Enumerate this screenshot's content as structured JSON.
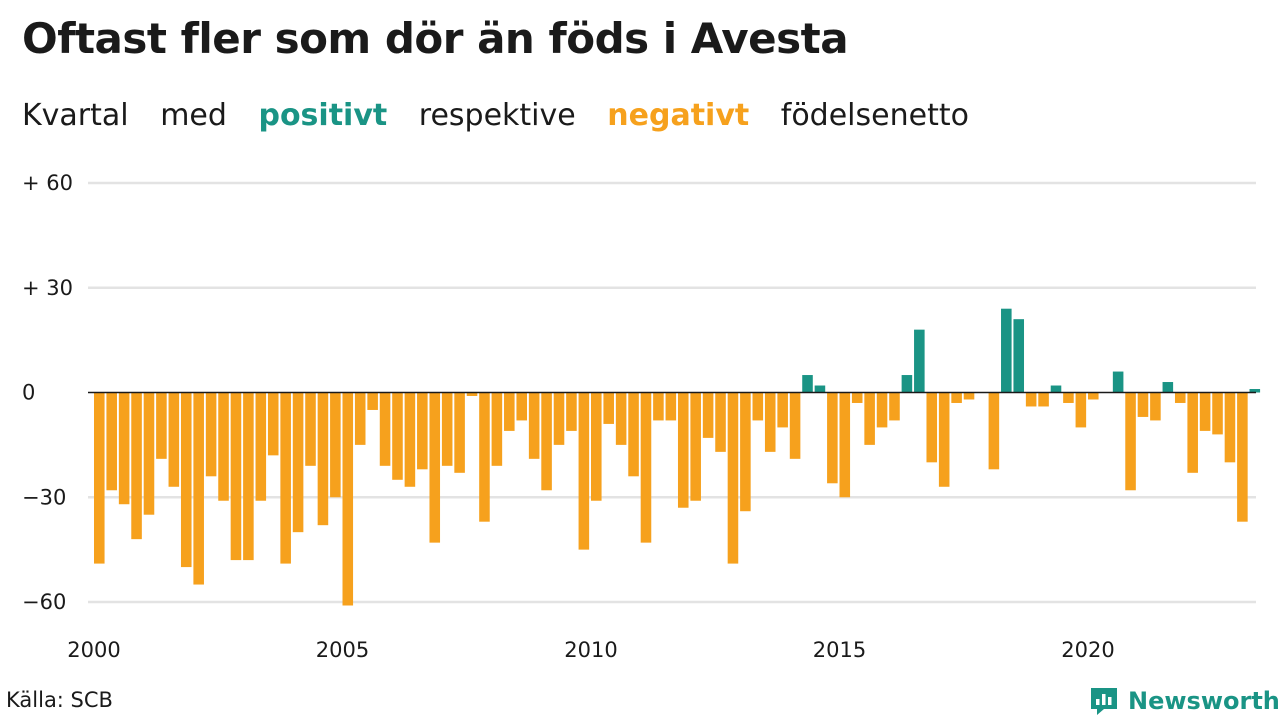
{
  "title": "Oftast fler som dör än föds i Avesta",
  "subtitle": {
    "part1": "Kvartal",
    "part2": "med",
    "positive_word": "positivt",
    "part3": "respektive",
    "negative_word": "negativt",
    "part4": "födelsenetto"
  },
  "source": "Källa: SCB",
  "brand": {
    "name": "Newsworthy",
    "icon": "newsworthy-logo-icon"
  },
  "colors": {
    "positive": "#1a9485",
    "negative": "#f6a11d",
    "grid": "#e3e3e3",
    "zero_line": "#1a1a1a"
  },
  "chart_data": {
    "type": "bar",
    "title": "Oftast fler som dör än föds i Avesta",
    "xlabel": "",
    "ylabel": "",
    "ylim": [
      -63,
      60
    ],
    "xlim": [
      2000,
      2023.75
    ],
    "y_ticks": [
      60,
      30,
      0,
      -30,
      -60
    ],
    "y_tick_labels": [
      "+ 60",
      "+ 30",
      "0",
      "−30",
      "−60"
    ],
    "x_ticks": [
      2000,
      2005,
      2010,
      2015,
      2020
    ],
    "x_tick_labels": [
      "2000",
      "2005",
      "2010",
      "2015",
      "2020"
    ],
    "grid": true,
    "legend": "none",
    "x_start": "2000 Q1",
    "period": "quarter",
    "values": [
      -49,
      -28,
      -32,
      -42,
      -35,
      -19,
      -27,
      -50,
      -55,
      -24,
      -31,
      -48,
      -48,
      -31,
      -18,
      -49,
      -40,
      -21,
      -38,
      -30,
      -61,
      -15,
      -5,
      -21,
      -25,
      -27,
      -22,
      -43,
      -21,
      -23,
      -1,
      -37,
      -21,
      -11,
      -8,
      -19,
      -28,
      -15,
      -11,
      -45,
      -31,
      -9,
      -15,
      -24,
      -43,
      -8,
      -8,
      -33,
      -31,
      -13,
      -17,
      -49,
      -34,
      -8,
      -17,
      -10,
      -19,
      5,
      2,
      -26,
      -30,
      -3,
      -15,
      -10,
      -8,
      5,
      18,
      -20,
      -27,
      -3,
      -2,
      0,
      -22,
      24,
      21,
      -4,
      -4,
      2,
      -3,
      -10,
      -2,
      0,
      6,
      -28,
      -7,
      -8,
      3,
      -3,
      -23,
      -11,
      -12,
      -20,
      -37,
      1
    ]
  }
}
